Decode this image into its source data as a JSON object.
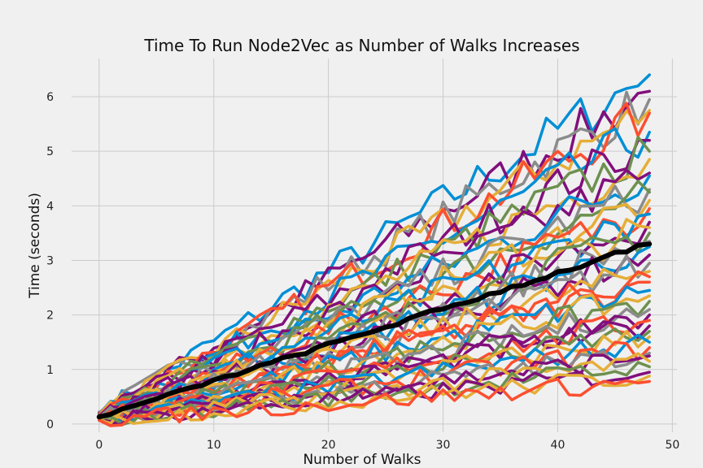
{
  "chart_data": {
    "type": "line",
    "title": "Time To Run Node2Vec as Number of Walks Increases",
    "xlabel": "Number of Walks",
    "ylabel": "Time (seconds)",
    "xlim": [
      -2.4,
      50.4
    ],
    "ylim": [
      -0.15,
      6.7
    ],
    "x_ticks": [
      0,
      10,
      20,
      30,
      40,
      50
    ],
    "y_ticks": [
      0,
      1,
      2,
      3,
      4,
      5,
      6
    ],
    "grid": true,
    "legend": "none",
    "x_range": [
      0,
      48
    ],
    "palette": [
      "#008fd5",
      "#fc4f30",
      "#e5ae38",
      "#6d904f",
      "#8b8b8b",
      "#810f7c"
    ],
    "series_endpoints": [
      {
        "start": 0.22,
        "end": 6.4,
        "color": "#008fd5"
      },
      {
        "start": 0.2,
        "end": 6.1,
        "color": "#810f7c"
      },
      {
        "start": 0.21,
        "end": 5.95,
        "color": "#8b8b8b"
      },
      {
        "start": 0.19,
        "end": 5.75,
        "color": "#e5ae38"
      },
      {
        "start": 0.2,
        "end": 5.7,
        "color": "#fc4f30"
      },
      {
        "start": 0.18,
        "end": 5.35,
        "color": "#008fd5"
      },
      {
        "start": 0.19,
        "end": 5.2,
        "color": "#810f7c"
      },
      {
        "start": 0.18,
        "end": 5.0,
        "color": "#6d904f"
      },
      {
        "start": 0.17,
        "end": 4.85,
        "color": "#e5ae38"
      },
      {
        "start": 0.17,
        "end": 4.6,
        "color": "#810f7c"
      },
      {
        "start": 0.16,
        "end": 4.55,
        "color": "#008fd5"
      },
      {
        "start": 0.16,
        "end": 4.3,
        "color": "#8b8b8b"
      },
      {
        "start": 0.16,
        "end": 4.25,
        "color": "#6d904f"
      },
      {
        "start": 0.15,
        "end": 4.1,
        "color": "#e5ae38"
      },
      {
        "start": 0.15,
        "end": 3.95,
        "color": "#fc4f30"
      },
      {
        "start": 0.15,
        "end": 3.85,
        "color": "#008fd5"
      },
      {
        "start": 0.14,
        "end": 3.7,
        "color": "#810f7c"
      },
      {
        "start": 0.14,
        "end": 3.6,
        "color": "#e5ae38"
      },
      {
        "start": 0.14,
        "end": 3.5,
        "color": "#6d904f"
      },
      {
        "start": 0.13,
        "end": 3.35,
        "color": "#8b8b8b"
      },
      {
        "start": 0.13,
        "end": 3.25,
        "color": "#008fd5"
      },
      {
        "start": 0.13,
        "end": 3.1,
        "color": "#810f7c"
      },
      {
        "start": 0.12,
        "end": 2.95,
        "color": "#8b8b8b"
      },
      {
        "start": 0.12,
        "end": 2.8,
        "color": "#e5ae38"
      },
      {
        "start": 0.12,
        "end": 2.7,
        "color": "#fc4f30"
      },
      {
        "start": 0.11,
        "end": 2.6,
        "color": "#fc4f30"
      },
      {
        "start": 0.11,
        "end": 2.45,
        "color": "#008fd5"
      },
      {
        "start": 0.11,
        "end": 2.35,
        "color": "#e5ae38"
      },
      {
        "start": 0.1,
        "end": 2.25,
        "color": "#6d904f"
      },
      {
        "start": 0.1,
        "end": 2.1,
        "color": "#8b8b8b"
      },
      {
        "start": 0.1,
        "end": 2.0,
        "color": "#810f7c"
      },
      {
        "start": 0.1,
        "end": 1.9,
        "color": "#fc4f30"
      },
      {
        "start": 0.09,
        "end": 1.8,
        "color": "#810f7c"
      },
      {
        "start": 0.09,
        "end": 1.7,
        "color": "#6d904f"
      },
      {
        "start": 0.09,
        "end": 1.6,
        "color": "#e5ae38"
      },
      {
        "start": 0.09,
        "end": 1.5,
        "color": "#008fd5"
      },
      {
        "start": 0.08,
        "end": 1.4,
        "color": "#fc4f30"
      },
      {
        "start": 0.08,
        "end": 1.3,
        "color": "#8b8b8b"
      },
      {
        "start": 0.08,
        "end": 1.25,
        "color": "#810f7c"
      },
      {
        "start": 0.08,
        "end": 1.15,
        "color": "#e5ae38"
      },
      {
        "start": 0.07,
        "end": 1.05,
        "color": "#6d904f"
      },
      {
        "start": 0.07,
        "end": 0.95,
        "color": "#810f7c"
      },
      {
        "start": 0.07,
        "end": 0.88,
        "color": "#e5ae38"
      },
      {
        "start": 0.07,
        "end": 0.78,
        "color": "#fc4f30"
      }
    ],
    "mean_series": {
      "start": 0.13,
      "end": 3.3,
      "color": "#000000"
    }
  }
}
